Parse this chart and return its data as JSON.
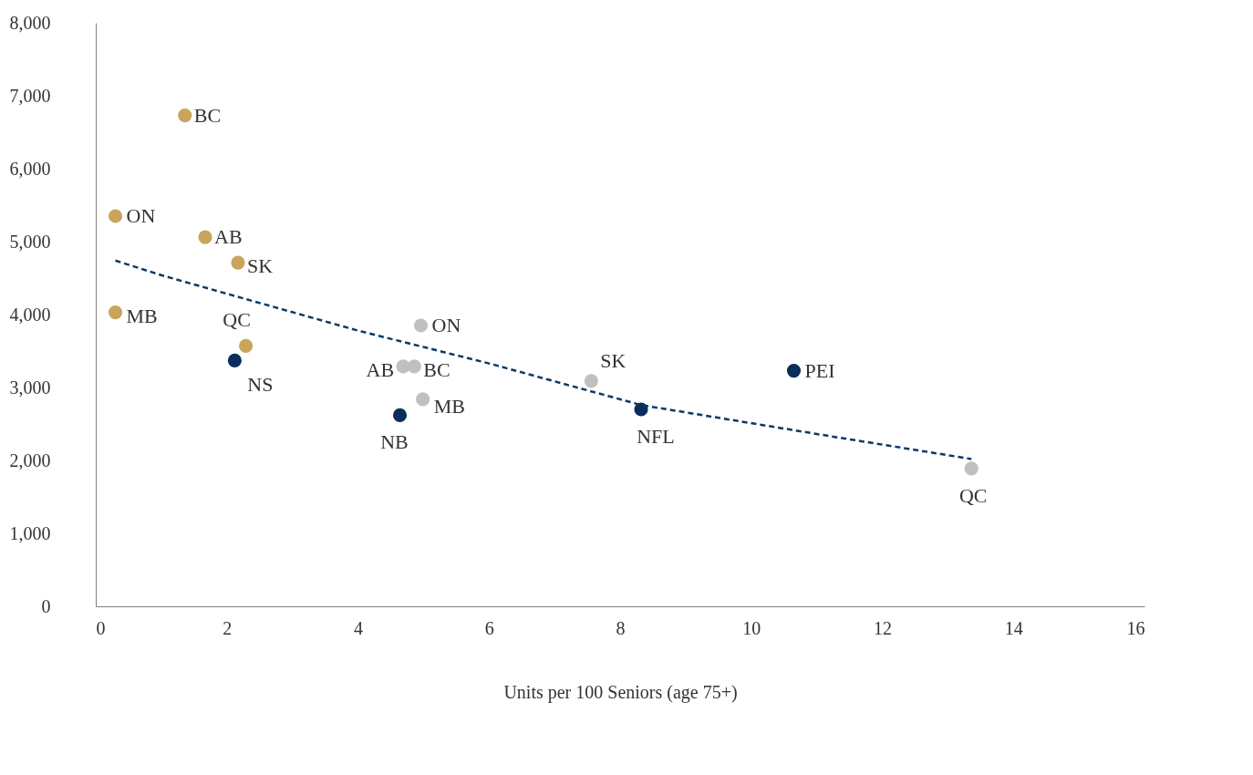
{
  "chart_data": {
    "type": "scatter",
    "xlabel": "Units per 100 Seniors (age 75+)",
    "xlim": [
      0,
      16
    ],
    "xticks": [
      0,
      2,
      4,
      6,
      8,
      10,
      12,
      14,
      16
    ],
    "ylim": [
      0,
      8000
    ],
    "yticks": [
      0,
      {
        "value": 1000,
        "label": "1,000"
      },
      {
        "value": 2000,
        "label": "2,000"
      },
      {
        "value": 3000,
        "label": "3,000"
      },
      {
        "value": 4000,
        "label": "4,000"
      },
      {
        "value": 5000,
        "label": "5,000"
      },
      {
        "value": 6000,
        "label": "6,000"
      },
      {
        "value": 7000,
        "label": "7,000"
      },
      {
        "value": 8000,
        "label": "8,000"
      }
    ],
    "grid": false,
    "marker": "circle",
    "series": [
      {
        "color": "#c8a55a",
        "x": [
          1.36,
          0.3,
          1.67,
          2.17,
          0.3,
          2.29
        ],
        "values": [
          6730,
          5350,
          5060,
          4710,
          4030,
          3570
        ]
      },
      {
        "color": "#0b2d5b",
        "x": [
          2.12,
          4.64,
          8.32,
          10.65
        ],
        "values": [
          3370,
          2620,
          2700,
          3230
        ]
      },
      {
        "color": "#c0c0c0",
        "x": [
          4.96,
          4.69,
          4.86,
          4.99,
          7.56,
          13.36
        ],
        "values": [
          3850,
          3290,
          3290,
          2840,
          3090,
          1890
        ]
      },
      {
        "type": "line",
        "line_style": "dashed",
        "marker": "none",
        "color": "#0b3a66",
        "x": [
          0.3,
          1,
          2.22,
          4,
          6,
          8.32,
          11.36,
          13.36
        ],
        "values": [
          4740,
          4540,
          4230,
          3780,
          3330,
          2760,
          2310,
          2020
        ]
      }
    ],
    "annotations": [
      {
        "text": "BC",
        "x": 1.36,
        "y": 6730
      },
      {
        "text": "ON",
        "x": 0.3,
        "y": 5350
      },
      {
        "text": "AB",
        "x": 1.67,
        "y": 5060
      },
      {
        "text": "SK",
        "x": 2.17,
        "y": 4710
      },
      {
        "text": "MB",
        "x": 0.3,
        "y": 4030
      },
      {
        "text": "QC",
        "x": 2.29,
        "y": 3570
      },
      {
        "text": "NS",
        "x": 2.12,
        "y": 3370
      },
      {
        "text": "NB",
        "x": 4.64,
        "y": 2620
      },
      {
        "text": "NFL",
        "x": 8.32,
        "y": 2700
      },
      {
        "text": "PEI",
        "x": 10.65,
        "y": 3230
      },
      {
        "text": "ON",
        "x": 4.96,
        "y": 3850
      },
      {
        "text": "AB",
        "x": 4.69,
        "y": 3290
      },
      {
        "text": "BC",
        "x": 4.86,
        "y": 3290
      },
      {
        "text": "MB",
        "x": 4.99,
        "y": 2840
      },
      {
        "text": "SK",
        "x": 7.56,
        "y": 3090
      },
      {
        "text": "QC",
        "x": 13.36,
        "y": 1890
      }
    ]
  }
}
